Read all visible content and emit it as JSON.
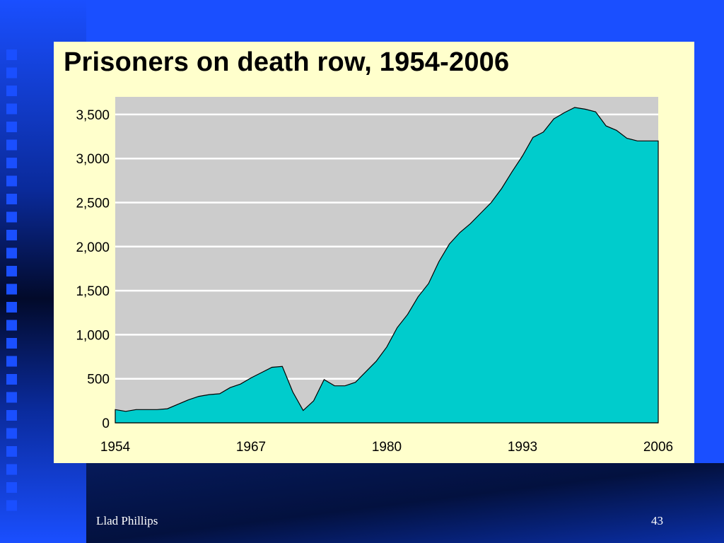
{
  "slide": {
    "author": "Llad Phillips",
    "page_number": "43"
  },
  "colors": {
    "slide_blue": "#1a4fff",
    "slide_dark": "#020a2a",
    "panel_bg": "#ffffcc",
    "plot_bg": "#cccccc",
    "area_fill": "#00cccc"
  },
  "chart_data": {
    "type": "area",
    "title": "Prisoners on death row, 1954-2006",
    "xlabel": "",
    "ylabel": "",
    "xlim": [
      1954,
      2006
    ],
    "ylim": [
      0,
      3700
    ],
    "yticks": [
      0,
      500,
      1000,
      1500,
      2000,
      2500,
      3000,
      3500
    ],
    "ytick_labels": [
      "0",
      "500",
      "1,000",
      "1,500",
      "2,000",
      "2,500",
      "3,000",
      "3,500"
    ],
    "xticks": [
      1954,
      1967,
      1980,
      1993,
      2006
    ],
    "xtick_labels": [
      "1954",
      "1967",
      "1980",
      "1993",
      "2006"
    ],
    "grid": true,
    "legend": false,
    "series": [
      {
        "x": [
          1954,
          1955,
          1956,
          1957,
          1958,
          1959,
          1960,
          1961,
          1962,
          1963,
          1964,
          1965,
          1966,
          1967,
          1968,
          1969,
          1970,
          1971,
          1972,
          1973,
          1974,
          1975,
          1976,
          1977,
          1978,
          1979,
          1980,
          1981,
          1982,
          1983,
          1984,
          1985,
          1986,
          1987,
          1988,
          1989,
          1990,
          1991,
          1992,
          1993,
          1994,
          1995,
          1996,
          1997,
          1998,
          1999,
          2000,
          2001,
          2002,
          2003,
          2004,
          2005,
          2006
        ],
        "values": [
          150,
          130,
          150,
          150,
          150,
          160,
          210,
          260,
          300,
          320,
          330,
          400,
          440,
          510,
          570,
          630,
          640,
          350,
          140,
          250,
          490,
          420,
          420,
          460,
          580,
          700,
          860,
          1080,
          1230,
          1430,
          1580,
          1830,
          2030,
          2160,
          2260,
          2380,
          2500,
          2660,
          2850,
          3030,
          3240,
          3300,
          3450,
          3520,
          3580,
          3560,
          3530,
          3370,
          3320,
          3230,
          3200,
          3200,
          3200
        ]
      }
    ]
  }
}
